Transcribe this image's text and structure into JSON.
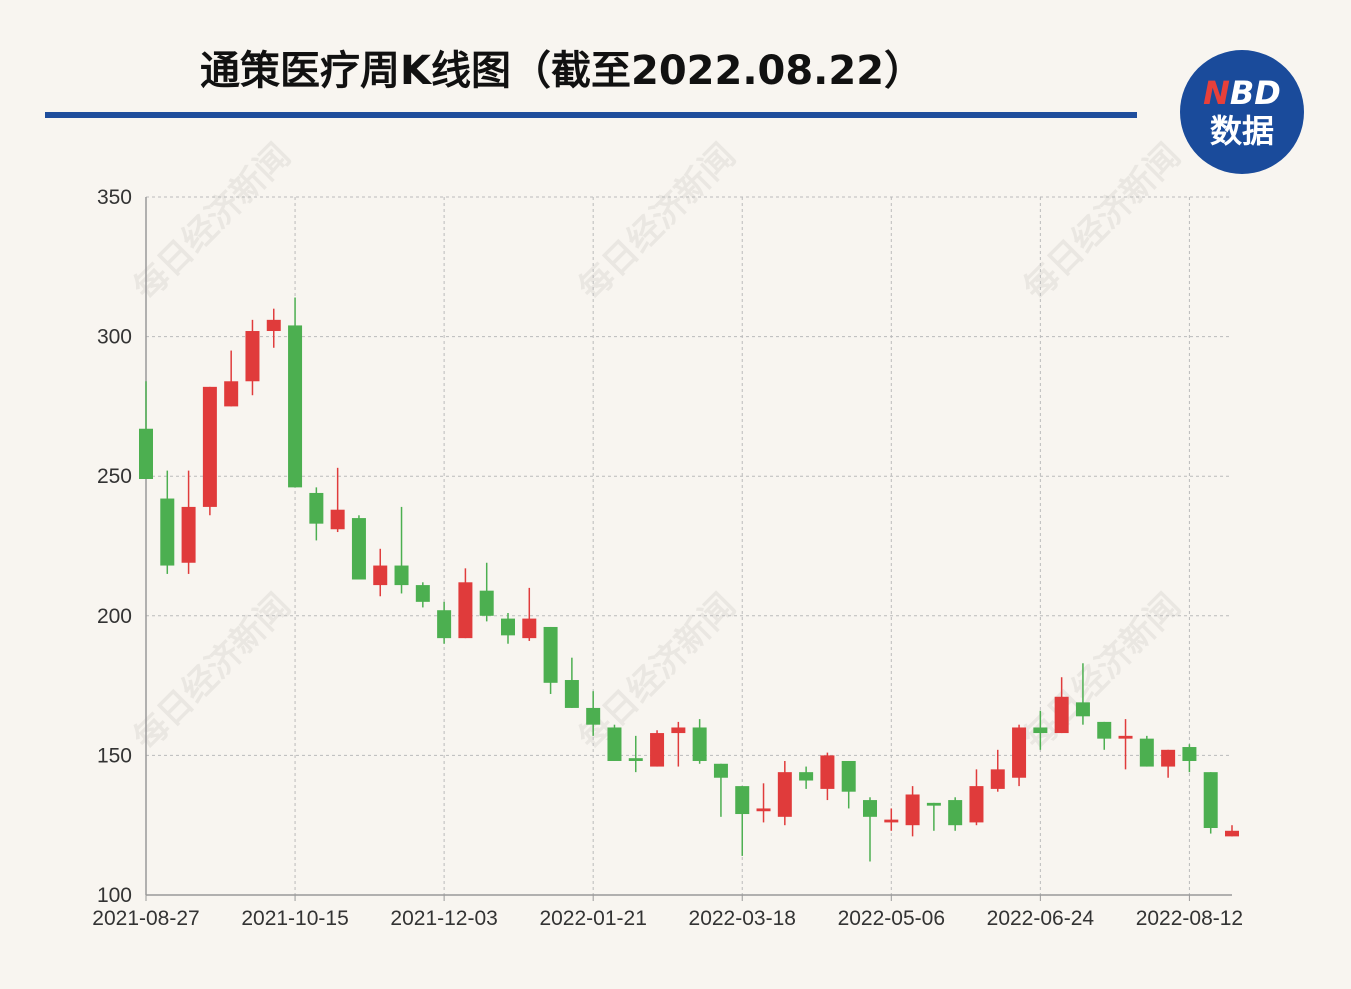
{
  "chart_data": {
    "type": "candlestick",
    "title": "通策医疗周K线图（截至2022.08.22）",
    "logo": {
      "n": "N",
      "bd": "BD",
      "cn": "数据"
    },
    "watermark": "每日经济新闻",
    "up_color": "#e03b3b",
    "down_color": "#4caf50",
    "categories": [
      "2021-08-27",
      null,
      null,
      null,
      null,
      null,
      null,
      "2021-10-15",
      null,
      null,
      null,
      null,
      null,
      null,
      "2021-12-03",
      null,
      null,
      null,
      null,
      null,
      null,
      "2022-01-21",
      null,
      null,
      null,
      null,
      null,
      null,
      "2022-03-18",
      null,
      null,
      null,
      null,
      null,
      null,
      "2022-05-06",
      null,
      null,
      null,
      null,
      null,
      null,
      "2022-06-24",
      null,
      null,
      null,
      null,
      null,
      null,
      "2022-08-12",
      null,
      null
    ],
    "open": [
      267,
      242,
      219,
      239,
      275,
      284,
      302,
      304,
      244,
      231,
      235,
      211,
      218,
      211,
      202,
      192,
      209,
      199,
      192,
      196,
      177,
      167,
      160,
      149,
      146,
      158,
      160,
      147,
      139,
      130,
      128,
      144,
      138,
      148,
      134,
      126,
      125,
      133,
      134,
      126,
      138,
      142,
      160,
      158,
      169,
      162,
      156,
      156,
      146,
      153,
      144,
      121
    ],
    "high": [
      284,
      252,
      252,
      282,
      295,
      306,
      310,
      314,
      246,
      253,
      236,
      224,
      239,
      212,
      205,
      217,
      219,
      201,
      210,
      196,
      185,
      173,
      161,
      157,
      159,
      162,
      163,
      147,
      139,
      140,
      148,
      146,
      151,
      148,
      135,
      131,
      139,
      133,
      135,
      145,
      152,
      161,
      166,
      178,
      183,
      162,
      163,
      157,
      152,
      154,
      144,
      125
    ],
    "low": [
      249,
      215,
      215,
      236,
      275,
      279,
      296,
      246,
      227,
      230,
      213,
      207,
      208,
      203,
      190,
      192,
      198,
      190,
      191,
      172,
      167,
      157,
      148,
      144,
      146,
      146,
      147,
      128,
      114,
      126,
      125,
      138,
      134,
      131,
      112,
      123,
      121,
      123,
      123,
      125,
      137,
      139,
      152,
      158,
      161,
      152,
      145,
      146,
      142,
      144,
      122,
      121
    ],
    "close": [
      249,
      218,
      239,
      282,
      284,
      302,
      306,
      246,
      233,
      238,
      213,
      218,
      211,
      205,
      192,
      212,
      200,
      193,
      199,
      176,
      167,
      161,
      148,
      148,
      158,
      160,
      148,
      142,
      129,
      131,
      144,
      141,
      150,
      137,
      128,
      127,
      136,
      132,
      125,
      139,
      145,
      160,
      158,
      171,
      164,
      156,
      157,
      146,
      152,
      148,
      124,
      123
    ],
    "ylim": [
      100,
      350
    ],
    "yticks": [
      100,
      150,
      200,
      250,
      300,
      350
    ],
    "grid": true
  }
}
